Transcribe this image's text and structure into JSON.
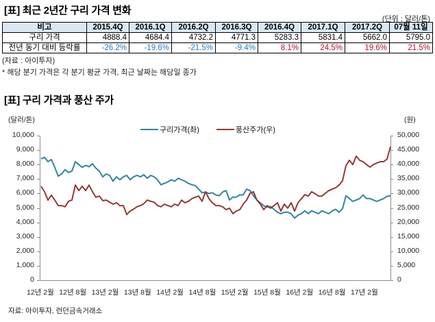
{
  "table_section": {
    "title": "[표] 최근 2년간 구리 가격 변화",
    "unit": "(단위 : 달러/톤)",
    "header": [
      "비고",
      "2015.4Q",
      "2016.1Q",
      "2016.2Q",
      "2016.3Q",
      "2016.4Q",
      "2017.1Q",
      "2017.2Q",
      "07월 11일"
    ],
    "rows": [
      {
        "label": "구리 가격",
        "values": [
          "4888.4",
          "4684.4",
          "4732.2",
          "4771.3",
          "5283.3",
          "5831.4",
          "5662.0",
          "5795.0"
        ]
      },
      {
        "label": "전년 동기 대비 등락률",
        "values": [
          "-26.2%",
          "-19.6%",
          "-21.5%",
          "-9.4%",
          "8.1%",
          "24.5%",
          "19.6%",
          "21.5%"
        ]
      }
    ],
    "source": "(자료 : 아이투자)",
    "footnote": "* 해당 분기 가격은 각 분기 평균 가격, 최근 날짜는 해당일 종가"
  },
  "chart_section": {
    "title": "[표] 구리 가격과 풍산 주가",
    "left_unit": "(달러/톤)",
    "right_unit": "(원)",
    "legend": [
      "구리가격(좌)",
      "풍산주가(우)"
    ],
    "source": "자료: 아이투자, 런던금속거래소"
  },
  "chart_data": {
    "type": "line",
    "title": "[표] 구리 가격과 풍산 주가",
    "xlabel": "",
    "ylabel": "(달러/톤)",
    "y2label": "(원)",
    "x_tick_labels": [
      "12년 2월",
      "12년 8월",
      "13년 2월",
      "13년 8월",
      "14년 2월",
      "14년 8월",
      "15년 2월",
      "15년 8월",
      "16년 2월",
      "16년 8월",
      "17년 2월"
    ],
    "ylim": [
      0,
      10000
    ],
    "y_ticks": [
      "0",
      "1,000",
      "2,000",
      "3,000",
      "4,000",
      "5,000",
      "6,000",
      "7,000",
      "8,000",
      "9,000",
      "10,000"
    ],
    "y2lim": [
      0,
      50000
    ],
    "y2_ticks": [
      "0",
      "5,000",
      "10,000",
      "15,000",
      "20,000",
      "25,000",
      "30,000",
      "35,000",
      "40,000",
      "45,000",
      "50,000"
    ],
    "legend_position": "top",
    "grid": false,
    "series": [
      {
        "name": "구리가격(좌)",
        "axis": "left",
        "color": "#31859c",
        "values": [
          8400,
          8500,
          8200,
          8350,
          7800,
          7200,
          7350,
          7650,
          7450,
          7550,
          8200,
          8000,
          7800,
          7950,
          7850,
          8050,
          7750,
          7550,
          7150,
          7350,
          7250,
          6850,
          7150,
          6950,
          7150,
          7250,
          6950,
          7150,
          7250,
          7150,
          7300,
          7050,
          7250,
          7150,
          6950,
          6600,
          6700,
          6800,
          6950,
          6850,
          7050,
          6950,
          6850,
          6700,
          6600,
          6550,
          6300,
          6050,
          6100,
          6000,
          6050,
          5900,
          5850,
          6100,
          6200,
          5550,
          5750,
          5750,
          5900,
          5900,
          6300,
          6200,
          5850,
          5550,
          5350,
          5150,
          5050,
          5100,
          4900,
          4700,
          4600,
          4700,
          4700,
          4600,
          4300,
          4500,
          4600,
          4800,
          4600,
          4800,
          4700,
          4600,
          4800,
          4700,
          4600,
          4800,
          4900,
          4700,
          4950,
          5850,
          5650,
          5450,
          5550,
          5650,
          5900,
          5650,
          5650,
          5550,
          5450,
          5550,
          5650,
          5800,
          5850
        ]
      },
      {
        "name": "풍산주가(우)",
        "axis": "right",
        "color": "#953735",
        "values": [
          32500,
          30600,
          27700,
          29400,
          27700,
          25800,
          25800,
          25400,
          27300,
          27700,
          32900,
          31000,
          32500,
          31000,
          32900,
          30600,
          28700,
          29100,
          27500,
          27700,
          27000,
          26300,
          26800,
          25800,
          25800,
          22700,
          23900,
          24600,
          25400,
          25800,
          26500,
          27700,
          27300,
          27000,
          25800,
          25400,
          26300,
          25800,
          25400,
          26300,
          25800,
          27700,
          26800,
          27300,
          28200,
          28700,
          29100,
          27300,
          30600,
          28200,
          26800,
          25800,
          25800,
          25400,
          24400,
          24900,
          23000,
          23900,
          24400,
          26300,
          27700,
          30100,
          30600,
          27700,
          26300,
          24400,
          25800,
          24900,
          25800,
          26800,
          23900,
          26300,
          24900,
          26800,
          23900,
          26800,
          28200,
          29600,
          29100,
          30600,
          29900,
          29100,
          29100,
          30100,
          31000,
          31500,
          32000,
          32900,
          34400,
          39600,
          41500,
          40000,
          42900,
          41500,
          41000,
          40000,
          39100,
          40000,
          40500,
          41000,
          41000,
          41900,
          46200
        ]
      }
    ]
  }
}
